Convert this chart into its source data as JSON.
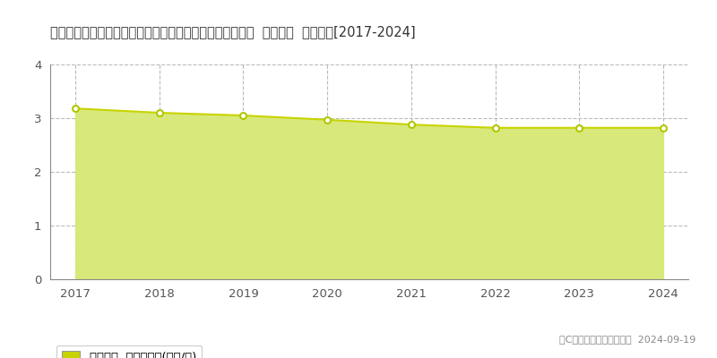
{
  "title": "宮崎県西臼杵郡五ケ瀬町大字三ケ所字赤谷１０７２１番２  基準地価  地価推移[2017-2024]",
  "years": [
    2017,
    2018,
    2019,
    2020,
    2021,
    2022,
    2023,
    2024
  ],
  "values": [
    3.18,
    3.1,
    3.05,
    2.97,
    2.88,
    2.82,
    2.82,
    2.82
  ],
  "ylim": [
    0,
    4
  ],
  "yticks": [
    0,
    1,
    2,
    3,
    4
  ],
  "line_color": "#c8d400",
  "fill_color": "#d8e87a",
  "fill_alpha": 1.0,
  "marker_facecolor": "#ffffff",
  "marker_edgecolor": "#b0c800",
  "background_color": "#ffffff",
  "hgrid_color": "#bbbbbb",
  "hgrid_style": "--",
  "vgrid_color": "#bbbbbb",
  "vgrid_style": "--",
  "spine_color": "#888888",
  "legend_label": "基準地価  平均坪単価(万円/坪)",
  "copyright_text": "（C）土地価格ドットコム  2024-09-19",
  "title_fontsize": 10.5,
  "tick_fontsize": 9.5,
  "legend_fontsize": 9.5,
  "copyright_fontsize": 8
}
